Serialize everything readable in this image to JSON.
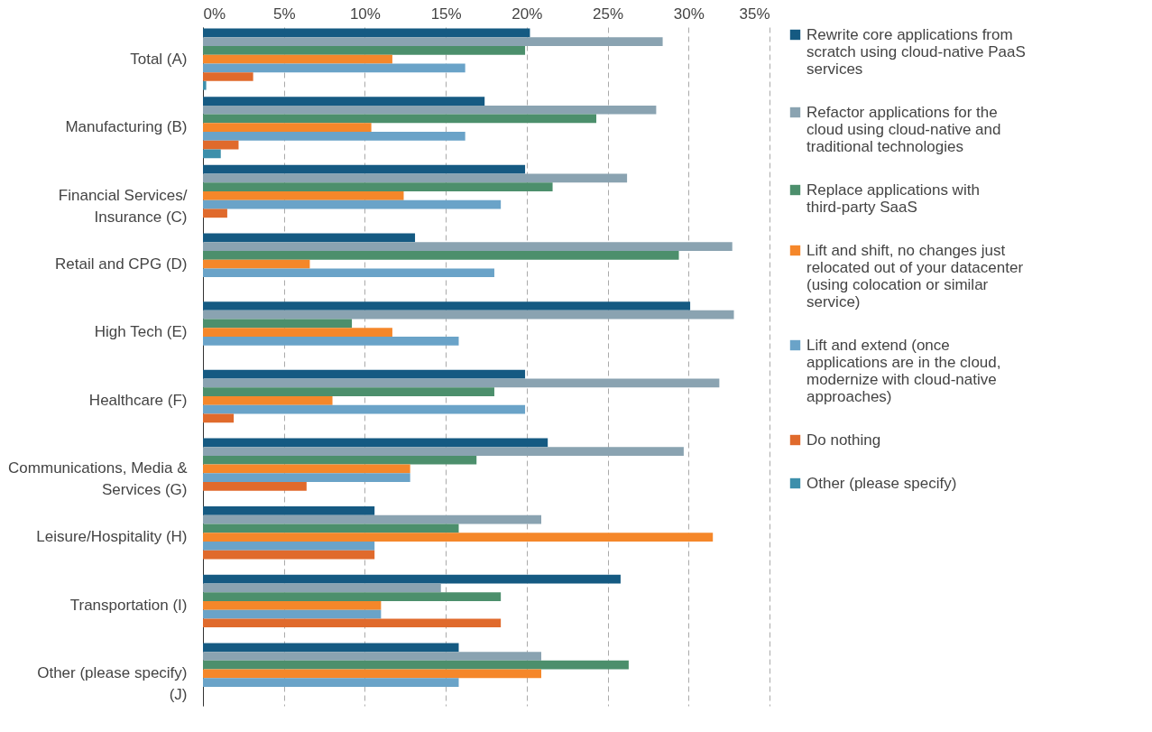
{
  "chart_data": {
    "type": "bar",
    "orientation": "horizontal",
    "categories": [
      "Total (A)",
      "Manufacturing (B)",
      "Financial Services/ Insurance (C)",
      "Retail and CPG (D)",
      "High Tech (E)",
      "Healthcare (F)",
      "Communications, Media & Services (G)",
      "Leisure/Hospitality (H)",
      "Transportation (I)",
      "Other (please specify) (J)"
    ],
    "series": [
      {
        "name": "Rewrite core applications from scratch using cloud-native PaaS services",
        "color": "#155a82",
        "values": [
          20.2,
          17.4,
          19.9,
          13.1,
          30.1,
          19.9,
          21.3,
          10.6,
          25.8,
          15.8
        ]
      },
      {
        "name": "Refactor applications for the cloud using cloud-native and traditional technologies",
        "color": "#8aa3b1",
        "values": [
          28.4,
          28.0,
          26.2,
          32.7,
          32.8,
          31.9,
          29.7,
          20.9,
          14.7,
          20.9
        ]
      },
      {
        "name": "Replace applications with third-party SaaS",
        "color": "#4c8f6c",
        "values": [
          19.9,
          24.3,
          21.6,
          29.4,
          9.2,
          18.0,
          16.9,
          15.8,
          18.4,
          26.3
        ]
      },
      {
        "name": "Lift and shift, no changes just relocated out of your datacenter (using colocation or similar service)",
        "color": "#f5872a",
        "values": [
          11.7,
          10.4,
          12.4,
          6.6,
          11.7,
          8.0,
          12.8,
          31.5,
          11.0,
          20.9
        ]
      },
      {
        "name": "Lift and extend (once applications are in the cloud,  modernize with cloud-native approaches)",
        "color": "#6aa3c8",
        "values": [
          16.2,
          16.2,
          18.4,
          18.0,
          15.8,
          19.9,
          12.8,
          10.6,
          11.0,
          15.8
        ]
      },
      {
        "name": "Do nothing",
        "color": "#e06a2c",
        "values": [
          3.1,
          2.2,
          1.5,
          0,
          0,
          1.9,
          6.4,
          10.6,
          18.4,
          0
        ]
      },
      {
        "name": "Other (please specify)",
        "color": "#3c8fab",
        "values": [
          0.2,
          1.1,
          0,
          0,
          0,
          0,
          0,
          0,
          0,
          0
        ]
      }
    ],
    "xlim": [
      0,
      35
    ],
    "xticks": [
      {
        "value": 0,
        "label": "0%"
      },
      {
        "value": 5,
        "label": "5%"
      },
      {
        "value": 10,
        "label": "10%"
      },
      {
        "value": 15,
        "label": "15%"
      },
      {
        "value": 20,
        "label": "20%"
      },
      {
        "value": 25,
        "label": "25%"
      },
      {
        "value": 30,
        "label": "30%"
      },
      {
        "value": 35,
        "label": "35%"
      }
    ],
    "grid": "x",
    "legend": "right"
  }
}
